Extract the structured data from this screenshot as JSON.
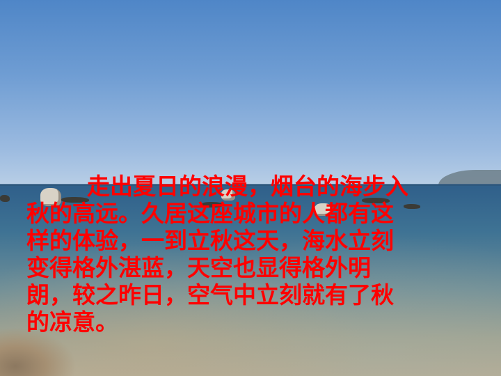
{
  "slide": {
    "text_lines": [
      "走出夏日的浪漫，烟台的海步入",
      "秋的高远。久居这座城市的人都有这",
      "样的体验，一到立秋这天，海水立刻",
      "变得格外湛蓝，天空也显得格外明",
      "朗，较之昨日，空气中立刻就有了秋",
      "的凉意。"
    ],
    "text_color": "#ff0000",
    "background": "seaside photograph: clear blue sky over calm sea with rocks near the shore"
  }
}
